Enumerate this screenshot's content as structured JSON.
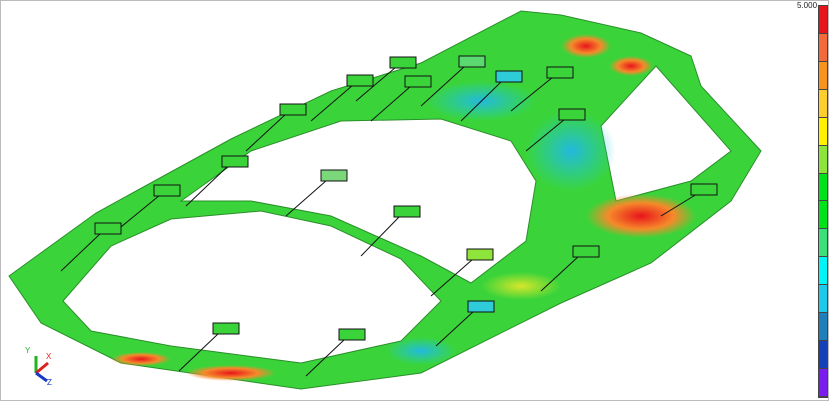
{
  "legend": {
    "max_label": "5.000",
    "colors": [
      "#e8141c",
      "#f36b3a",
      "#f7941d",
      "#fcce2e",
      "#fff200",
      "#8ee43a",
      "#00e21a",
      "#00e21a",
      "#3be07a",
      "#00f6f6",
      "#1ccaec",
      "#1f7fb8",
      "#1440b8",
      "#7a1cf0"
    ]
  },
  "axes": {
    "x": "X",
    "y": "Y",
    "z": "Z"
  },
  "colors": {
    "background": "#ffffff",
    "part_base": "#3ad43a",
    "hot": "#e8391c",
    "cool": "#2ecbd8"
  }
}
